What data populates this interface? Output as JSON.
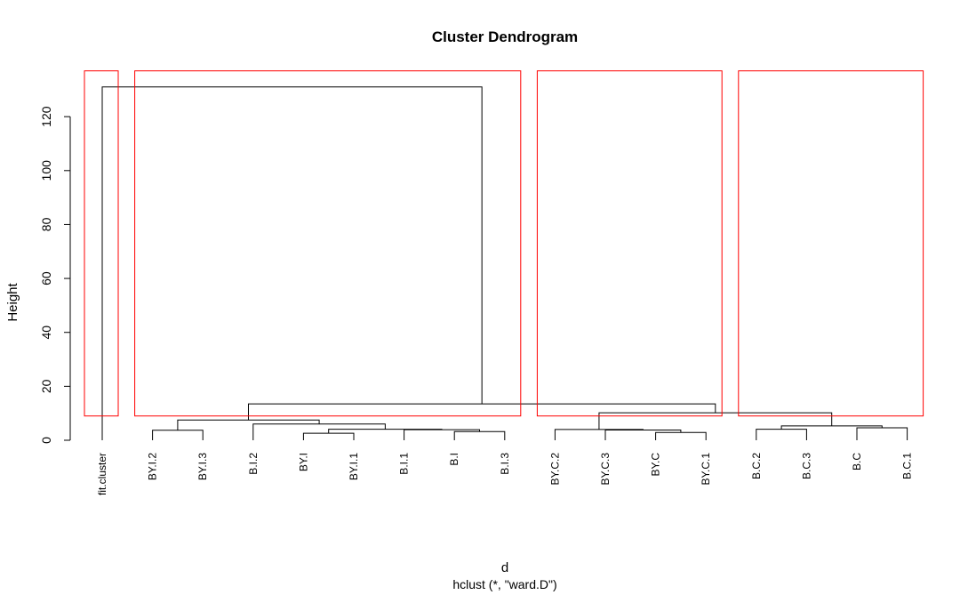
{
  "chart_data": {
    "type": "dendrogram",
    "title": "Cluster Dendrogram",
    "xlabel": "d",
    "subtitle": "hclust (*, \"ward.D\")",
    "ylabel": "Height",
    "ylim": [
      0,
      135
    ],
    "yticks": [
      0,
      20,
      40,
      60,
      80,
      100,
      120
    ],
    "leaves": [
      "fit.cluster",
      "BY.I.2",
      "BY.I.3",
      "B.I.2",
      "BY.I",
      "BY.I.1",
      "B.I.1",
      "B.I",
      "B.I.3",
      "BY.C.2",
      "BY.C.3",
      "BY.C",
      "BY.C.1",
      "B.C.2",
      "B.C.3",
      "B.C",
      "B.C.1"
    ],
    "merges": [
      {
        "left": "B.I",
        "right": "B.I.3",
        "height": 3.2
      },
      {
        "left": "BY.C",
        "right": "BY.C.1",
        "height": 2.9
      },
      {
        "left": "BY.I",
        "right": "BY.I.1",
        "height": 2.6
      },
      {
        "left": "BY.I.2",
        "right": "BY.I.3",
        "height": 3.7
      },
      {
        "left": "B.C.2",
        "right": "B.C.3",
        "height": 4.1
      },
      {
        "left": "B.I.1",
        "right": "m1",
        "height": 3.9
      },
      {
        "left": "BY.C.3",
        "right": "m2",
        "height": 3.8
      },
      {
        "left": "B.C",
        "right": "B.C.1",
        "height": 4.6
      },
      {
        "left": "m3",
        "right": "m6",
        "height": 4.1
      },
      {
        "left": "BY.C.2",
        "right": "m7",
        "height": 4.0
      },
      {
        "left": "m5",
        "right": "m8",
        "height": 5.3
      },
      {
        "left": "B.I.2",
        "right": "m9",
        "height": 6.0
      },
      {
        "left": "m4",
        "right": "m12",
        "height": 7.5
      },
      {
        "left": "m10",
        "right": "m11",
        "height": 10.2
      },
      {
        "left": "m13",
        "right": "m14",
        "height": 13.5
      },
      {
        "left": "fit.cluster",
        "right": "m15",
        "height": 131.0
      }
    ],
    "cluster_boxes": {
      "color": "#ff0000",
      "cut_height": 9,
      "groups": [
        [
          "fit.cluster"
        ],
        [
          "BY.I.2",
          "BY.I.3",
          "B.I.2",
          "BY.I",
          "BY.I.1",
          "B.I.1",
          "B.I",
          "B.I.3"
        ],
        [
          "BY.C.2",
          "BY.C.3",
          "BY.C",
          "BY.C.1"
        ],
        [
          "B.C.2",
          "B.C.3",
          "B.C",
          "B.C.1"
        ]
      ]
    },
    "line_color": "#000000"
  }
}
